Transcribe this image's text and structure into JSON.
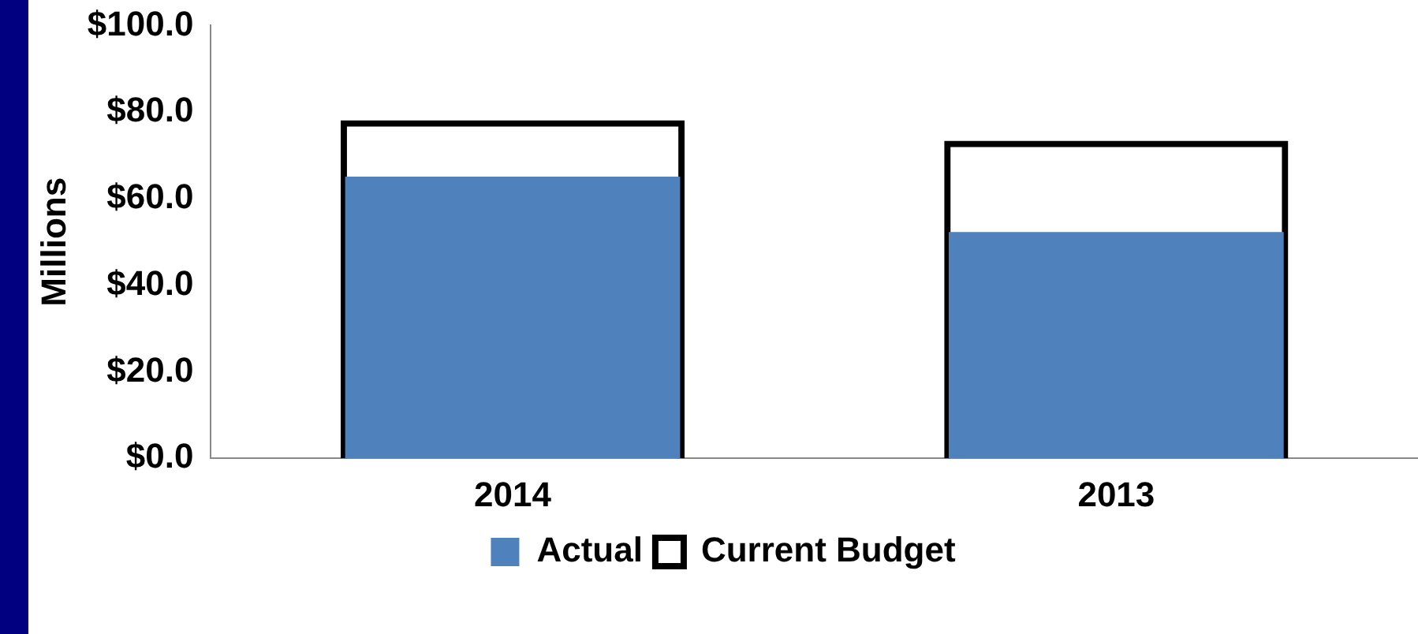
{
  "chart_data": {
    "type": "bar",
    "ylabel": "Millions",
    "categories": [
      "2014",
      "2013"
    ],
    "series": [
      {
        "name": "Actual",
        "color": "#4f81bd",
        "values": [
          65.1,
          52.3
        ]
      },
      {
        "name": "Current Budget",
        "color": "#000000",
        "values": [
          78.1,
          73.4
        ]
      }
    ],
    "ylim": [
      0,
      100
    ],
    "yticks": [
      {
        "value": 0,
        "label": "$0.0"
      },
      {
        "value": 20,
        "label": "$20.0"
      },
      {
        "value": 40,
        "label": "$40.0"
      },
      {
        "value": 60,
        "label": "$60.0"
      },
      {
        "value": 80,
        "label": "$80.0"
      },
      {
        "value": 100,
        "label": "$100.0"
      }
    ],
    "grid": false,
    "legend": "bottom"
  }
}
